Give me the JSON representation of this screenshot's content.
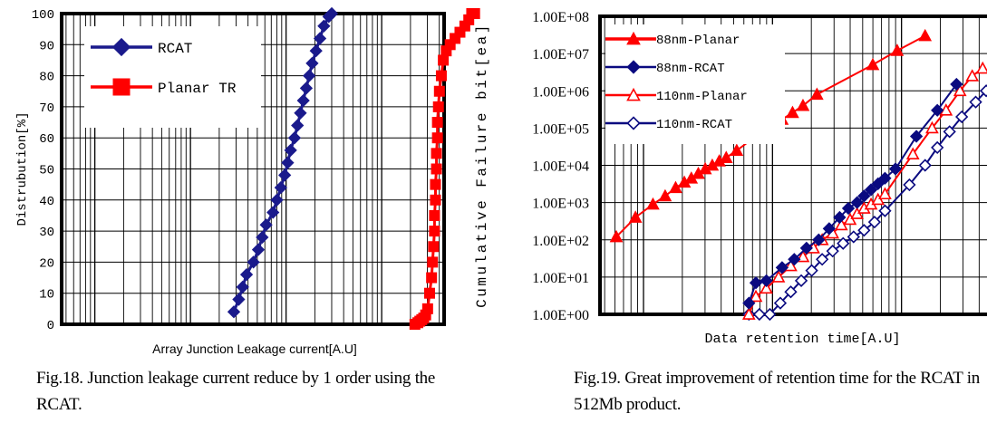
{
  "chart_data": [
    {
      "type": "scatter",
      "xlabel": "Array Junction Leakage current[A.U]",
      "ylabel": "Distrubution[%]",
      "y_ticks": [
        "0",
        "10",
        "20",
        "30",
        "40",
        "50",
        "60",
        "70",
        "80",
        "90",
        "100"
      ],
      "ylim": [
        0,
        100
      ],
      "x_scale": "log",
      "x_tick_labels": "none",
      "grid": true,
      "legend_placement": "top-left",
      "caption": "Fig.18. Junction leakage current reduce by 1 order using the RCAT.",
      "series": [
        {
          "name": "RCAT",
          "color": "#1a1a8c",
          "marker": "diamond-filled",
          "points": [
            [
              0.0,
              4
            ],
            [
              0.05,
              8
            ],
            [
              0.09,
              12
            ],
            [
              0.13,
              16
            ],
            [
              0.2,
              20
            ],
            [
              0.25,
              24
            ],
            [
              0.29,
              28
            ],
            [
              0.33,
              32
            ],
            [
              0.4,
              36
            ],
            [
              0.44,
              40
            ],
            [
              0.48,
              44
            ],
            [
              0.52,
              48
            ],
            [
              0.55,
              52
            ],
            [
              0.58,
              56
            ],
            [
              0.62,
              60
            ],
            [
              0.65,
              64
            ],
            [
              0.68,
              68
            ],
            [
              0.71,
              72
            ],
            [
              0.74,
              76
            ],
            [
              0.77,
              80
            ],
            [
              0.8,
              84
            ],
            [
              0.84,
              88
            ],
            [
              0.88,
              92
            ],
            [
              0.92,
              96
            ],
            [
              0.97,
              99
            ],
            [
              1.0,
              100
            ]
          ]
        },
        {
          "name": "Planar TR",
          "color": "#ff0000",
          "marker": "square-filled",
          "points": [
            [
              1.85,
              0
            ],
            [
              1.88,
              0.5
            ],
            [
              1.9,
              1
            ],
            [
              1.92,
              1.5
            ],
            [
              1.94,
              2
            ],
            [
              1.96,
              3
            ],
            [
              1.98,
              5
            ],
            [
              2.0,
              10
            ],
            [
              2.02,
              15
            ],
            [
              2.03,
              20
            ],
            [
              2.04,
              25
            ],
            [
              2.05,
              30
            ],
            [
              2.05,
              35
            ],
            [
              2.06,
              40
            ],
            [
              2.06,
              45
            ],
            [
              2.07,
              50
            ],
            [
              2.07,
              55
            ],
            [
              2.08,
              60
            ],
            [
              2.08,
              65
            ],
            [
              2.09,
              70
            ],
            [
              2.1,
              75
            ],
            [
              2.12,
              80
            ],
            [
              2.14,
              85
            ],
            [
              2.17,
              88
            ],
            [
              2.21,
              90
            ],
            [
              2.26,
              92
            ],
            [
              2.31,
              94
            ],
            [
              2.36,
              96
            ],
            [
              2.4,
              98
            ],
            [
              2.43,
              100
            ],
            [
              2.46,
              100
            ]
          ]
        }
      ]
    },
    {
      "type": "line",
      "xlabel": "Data retention time[A.U]",
      "ylabel": "Cumulative Failure bit[ea]",
      "y_scale": "log",
      "y_ticks": [
        "1.00E+00",
        "1.00E+01",
        "1.00E+02",
        "1.00E+03",
        "1.00E+04",
        "1.00E+05",
        "1.00E+06",
        "1.00E+07",
        "1.00E+08"
      ],
      "ylim": [
        1,
        100000000
      ],
      "x_scale": "log",
      "x_tick_labels": "none",
      "grid": true,
      "legend_placement": "top-left",
      "caption": "Fig.19. Great improvement of retention time for the RCAT in 512Mb product.",
      "series": [
        {
          "name": "88nm-Planar",
          "color": "#ff0000",
          "marker": "triangle-filled",
          "points": [
            [
              0.0,
              120
            ],
            [
              0.055,
              400
            ],
            [
              0.105,
              900
            ],
            [
              0.14,
              1500
            ],
            [
              0.17,
              2500
            ],
            [
              0.195,
              3500
            ],
            [
              0.215,
              4500
            ],
            [
              0.235,
              6000
            ],
            [
              0.255,
              8000
            ],
            [
              0.275,
              10000
            ],
            [
              0.295,
              13000
            ],
            [
              0.315,
              16000
            ],
            [
              0.345,
              25000
            ],
            [
              0.4,
              60000
            ],
            [
              0.44,
              100000
            ],
            [
              0.475,
              170000
            ],
            [
              0.505,
              260000
            ],
            [
              0.535,
              400000
            ],
            [
              0.575,
              800000
            ],
            [
              0.735,
              5000000
            ],
            [
              0.805,
              12000000
            ],
            [
              0.885,
              30000000
            ]
          ]
        },
        {
          "name": "88nm-RCAT",
          "color": "#0a0a80",
          "marker": "diamond-filled",
          "points": [
            [
              0.38,
              2
            ],
            [
              0.4,
              7
            ],
            [
              0.43,
              8
            ],
            [
              0.475,
              18
            ],
            [
              0.51,
              30
            ],
            [
              0.545,
              60
            ],
            [
              0.58,
              100
            ],
            [
              0.61,
              200
            ],
            [
              0.64,
              400
            ],
            [
              0.665,
              700
            ],
            [
              0.69,
              1000
            ],
            [
              0.71,
              1500
            ],
            [
              0.73,
              2200
            ],
            [
              0.75,
              3200
            ],
            [
              0.77,
              4500
            ],
            [
              0.8,
              8000
            ],
            [
              0.86,
              60000
            ],
            [
              0.92,
              300000
            ],
            [
              0.975,
              1500000
            ]
          ]
        },
        {
          "name": "110nm-Planar",
          "color": "#ff0000",
          "marker": "triangle-open",
          "points": [
            [
              0.38,
              1
            ],
            [
              0.4,
              3
            ],
            [
              0.43,
              5
            ],
            [
              0.465,
              10
            ],
            [
              0.5,
              20
            ],
            [
              0.535,
              35
            ],
            [
              0.565,
              60
            ],
            [
              0.59,
              100
            ],
            [
              0.62,
              150
            ],
            [
              0.645,
              250
            ],
            [
              0.67,
              350
            ],
            [
              0.69,
              500
            ],
            [
              0.71,
              700
            ],
            [
              0.73,
              900
            ],
            [
              0.75,
              1200
            ],
            [
              0.77,
              1700
            ],
            [
              0.85,
              20000
            ],
            [
              0.905,
              100000
            ],
            [
              0.945,
              300000
            ],
            [
              0.985,
              1000000
            ],
            [
              1.02,
              2500000
            ],
            [
              1.05,
              4000000
            ]
          ]
        },
        {
          "name": "110nm-RCAT",
          "color": "#0a0a80",
          "marker": "diamond-open",
          "points": [
            [
              0.38,
              1
            ],
            [
              0.41,
              1
            ],
            [
              0.44,
              1
            ],
            [
              0.47,
              2
            ],
            [
              0.5,
              4
            ],
            [
              0.53,
              8
            ],
            [
              0.56,
              15
            ],
            [
              0.59,
              30
            ],
            [
              0.62,
              50
            ],
            [
              0.65,
              80
            ],
            [
              0.68,
              120
            ],
            [
              0.71,
              180
            ],
            [
              0.74,
              300
            ],
            [
              0.77,
              600
            ],
            [
              0.84,
              3000
            ],
            [
              0.885,
              10000
            ],
            [
              0.92,
              30000
            ],
            [
              0.955,
              80000
            ],
            [
              0.99,
              200000
            ],
            [
              1.03,
              500000
            ],
            [
              1.06,
              1000000
            ]
          ]
        }
      ]
    }
  ]
}
